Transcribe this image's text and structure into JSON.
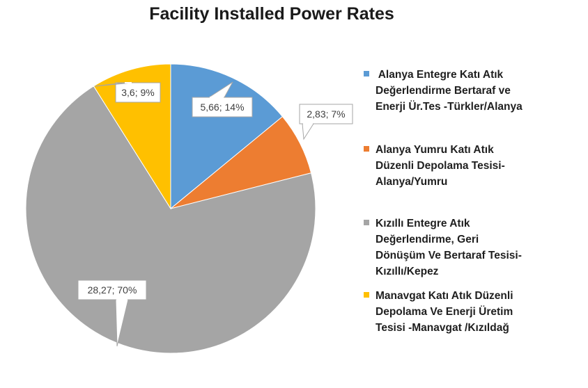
{
  "chart_data": {
    "type": "pie",
    "title": "Facility Installed Power Rates",
    "slices": [
      {
        "label": "Alanya Entegre Katı Atık Değerlendirme Bertaraf ve Enerji Ür.Tes -Türkler/Alanya",
        "value": 5.66,
        "percent": 14,
        "data_label": "5,66; 14%",
        "color": "#5b9bd5"
      },
      {
        "label": "Alanya Yumru Katı Atık Düzenli Depolama Tesisi-Alanya/Yumru",
        "value": 2.83,
        "percent": 7,
        "data_label": "2,83; 7%",
        "color": "#ed7d31"
      },
      {
        "label": "Kızıllı Entegre Atık Değerlendirme, Geri Dönüşüm Ve Bertaraf Tesisi-Kızıllı/Kepez",
        "value": 28.27,
        "percent": 70,
        "data_label": "28,27; 70%",
        "color": "#a5a5a5"
      },
      {
        "label": "Manavgat Katı Atık Düzenli Depolama Ve Enerji Üretim Tesisi -Manavgat /Kızıldağ",
        "value": 3.6,
        "percent": 9,
        "data_label": "3,6; 9%",
        "color": "#ffc000"
      }
    ],
    "legend_position": "right"
  },
  "legend_lines": [
    [
      " Alanya Entegre Katı Atık",
      "Değerlendirme Bertaraf ve",
      "Enerji Ür.Tes -Türkler/Alanya"
    ],
    [
      "Alanya Yumru Katı Atık",
      "Düzenli Depolama Tesisi-",
      "Alanya/Yumru"
    ],
    [
      "Kızıllı Entegre Atık",
      "Değerlendirme, Geri",
      "Dönüşüm Ve Bertaraf Tesisi-",
      "Kızıllı/Kepez"
    ],
    [
      "Manavgat Katı Atık Düzenli",
      "Depolama Ve Enerji Üretim",
      "Tesisi -Manavgat /Kızıldağ"
    ]
  ]
}
